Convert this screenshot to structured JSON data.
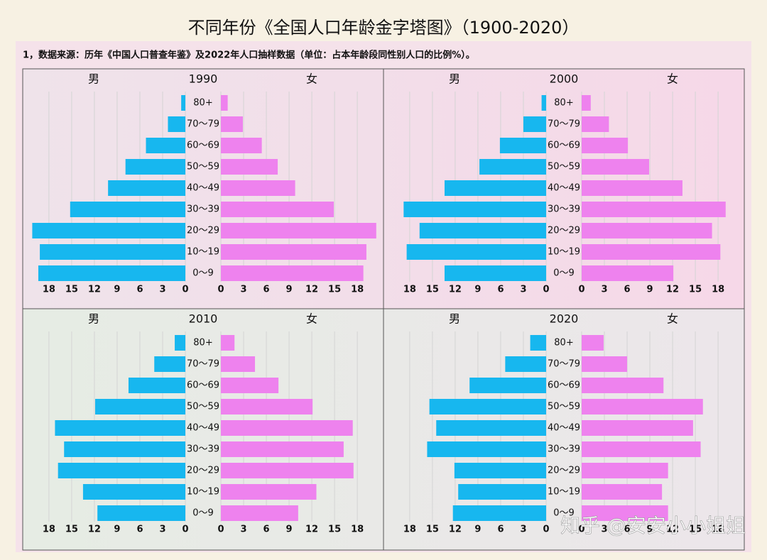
{
  "title": "不同年份《全国人口年龄金字塔图》（1900-2020）",
  "subtitle": "1，数据来源：历年《中国人口普查年鉴》及2022年人口抽样数据（单位：占本年龄段同性别人口的比例%）。",
  "watermark": "知乎 @安安小小姐姐",
  "chart_data": [
    {
      "type": "pyramid",
      "title": "1990",
      "categories": [
        "80+",
        "70～79",
        "60～69",
        "50～59",
        "40～49",
        "30～39",
        "20～29",
        "10～19",
        "0～9"
      ],
      "series": [
        {
          "name": "男",
          "color": "#17b7ef",
          "values": [
            0.55,
            2.3,
            5.2,
            7.9,
            10.2,
            15.2,
            20.2,
            19.2,
            19.4
          ]
        },
        {
          "name": "女",
          "color": "#ee82ee",
          "values": [
            0.9,
            2.9,
            5.4,
            7.5,
            9.8,
            14.9,
            20.5,
            19.2,
            18.8
          ]
        }
      ],
      "xlim": [
        0,
        20.8
      ],
      "xticks": [
        0,
        3,
        6,
        9,
        12,
        15,
        18
      ],
      "grid": true
    },
    {
      "type": "pyramid",
      "title": "2000",
      "categories": [
        "80+",
        "70～79",
        "60～69",
        "50～59",
        "40～49",
        "30～39",
        "20～29",
        "10～19",
        "0～9"
      ],
      "series": [
        {
          "name": "男",
          "color": "#17b7ef",
          "values": [
            0.6,
            3.0,
            6.1,
            8.8,
            13.4,
            18.8,
            16.7,
            18.4,
            13.4
          ]
        },
        {
          "name": "女",
          "color": "#ee82ee",
          "values": [
            1.2,
            3.6,
            6.1,
            8.9,
            13.3,
            19.0,
            17.2,
            18.3,
            12.1
          ]
        }
      ],
      "xlim": [
        0,
        20.8
      ],
      "xticks": [
        0,
        3,
        6,
        9,
        12,
        15,
        18
      ],
      "grid": true
    },
    {
      "type": "pyramid",
      "title": "2010",
      "categories": [
        "80+",
        "70～79",
        "60～69",
        "50～59",
        "40～49",
        "30～39",
        "20～29",
        "10～19",
        "0～9"
      ],
      "series": [
        {
          "name": "男",
          "color": "#17b7ef",
          "values": [
            1.4,
            4.1,
            7.5,
            11.9,
            17.2,
            16.0,
            16.8,
            13.5,
            11.6
          ]
        },
        {
          "name": "女",
          "color": "#ee82ee",
          "values": [
            1.8,
            4.5,
            7.6,
            12.1,
            17.4,
            16.2,
            17.5,
            12.6,
            10.2
          ]
        }
      ],
      "xlim": [
        0,
        20.8
      ],
      "xticks": [
        0,
        3,
        6,
        9,
        12,
        15,
        18
      ],
      "grid": true
    },
    {
      "type": "pyramid",
      "title": "2020",
      "categories": [
        "80+",
        "70～79",
        "60～69",
        "50～59",
        "40～49",
        "30～39",
        "20～29",
        "10～19",
        "0～9"
      ],
      "series": [
        {
          "name": "男",
          "color": "#17b7ef",
          "values": [
            2.1,
            5.4,
            10.1,
            15.4,
            14.5,
            15.7,
            12.1,
            11.6,
            12.3
          ]
        },
        {
          "name": "女",
          "color": "#ee82ee",
          "values": [
            2.9,
            6.0,
            10.8,
            16.0,
            14.7,
            15.7,
            11.4,
            10.6,
            11.4
          ]
        }
      ],
      "xlim": [
        0,
        20.8
      ],
      "xticks": [
        0,
        3,
        6,
        9,
        12,
        15,
        18
      ],
      "grid": true
    }
  ]
}
